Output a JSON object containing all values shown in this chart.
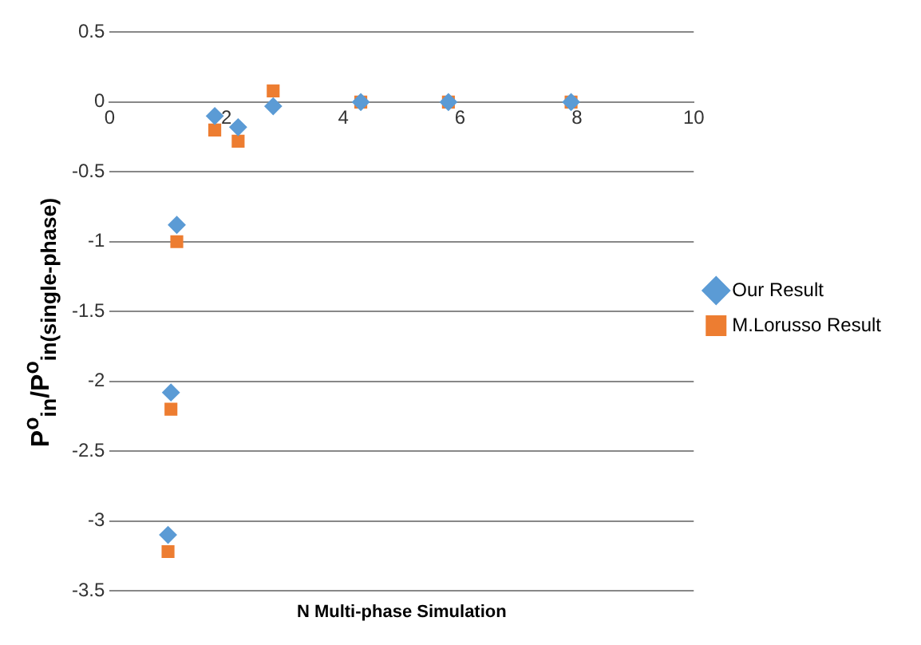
{
  "chart_data": {
    "type": "scatter",
    "xlabel": "N Multi-phase Simulation",
    "ylabel": "P$^{o}$$_{in}$/P$^{o}$$_{in(single-phase)}$",
    "xlim": [
      0,
      10
    ],
    "xticks": [
      0,
      2,
      4,
      6,
      8,
      10
    ],
    "ylim": [
      -3.5,
      0.5
    ],
    "yticks": [
      -3.5,
      -3,
      -2.5,
      -2,
      -1.5,
      -1,
      -0.5,
      0,
      0.5
    ],
    "grid": "y",
    "legend": "right",
    "series": [
      {
        "name": "Our Result",
        "color": "#5b9bd5",
        "marker": "diamond",
        "x": [
          1.0,
          1.05,
          1.15,
          1.8,
          2.2,
          2.8,
          4.3,
          5.8,
          7.9
        ],
        "values": [
          -3.1,
          -2.08,
          -0.88,
          -0.1,
          -0.18,
          -0.03,
          0,
          0,
          0
        ]
      },
      {
        "name": "M.Lorusso Result",
        "color": "#ed7d31",
        "marker": "square",
        "x": [
          1.0,
          1.05,
          1.15,
          1.8,
          2.2,
          2.8,
          4.3,
          5.8,
          7.9
        ],
        "values": [
          -3.22,
          -2.2,
          -1.0,
          -0.2,
          -0.28,
          0.08,
          0,
          0,
          0
        ]
      }
    ]
  }
}
